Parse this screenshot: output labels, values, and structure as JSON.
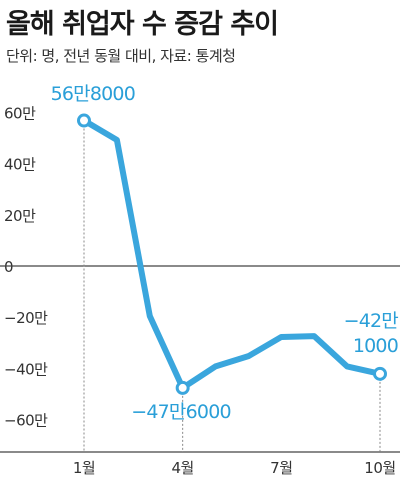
{
  "title": "올해 취업자 수 증감 추이",
  "subtitle": "단위: 명, 전년 동월 대비, 자료: 통계청",
  "colors": {
    "line": "#3aa6dd",
    "label": "#2a9fd8",
    "axis": "#444444",
    "guide": "#888888"
  },
  "chart_data": {
    "type": "line",
    "title": "올해 취업자 수 증감 추이",
    "subtitle": "단위: 명, 전년 동월 대비, 자료: 통계청",
    "x": [
      1,
      2,
      3,
      4,
      5,
      6,
      7,
      8,
      9,
      10
    ],
    "x_tick_values": [
      1,
      4,
      7,
      10
    ],
    "x_tick_labels": [
      "1월",
      "4월",
      "7월",
      "10월"
    ],
    "y_tick_values": [
      60,
      40,
      20,
      0,
      -20,
      -40,
      -60
    ],
    "y_tick_labels": [
      "60만",
      "40만",
      "20만",
      "0",
      "-20만",
      "-40만",
      "-60만"
    ],
    "ylim": [
      -70,
      65
    ],
    "ylabel": "",
    "xlabel": "",
    "series": [
      {
        "values": [
          568000,
          492000,
          -195000,
          -476000,
          -392000,
          -352000,
          -277000,
          -274000,
          -392000,
          -421000
        ]
      }
    ],
    "annotations": [
      {
        "x": 1,
        "lines": [
          "56만8000"
        ]
      },
      {
        "x": 4,
        "lines": [
          "−47만6000"
        ]
      },
      {
        "x": 10,
        "lines": [
          "−42만",
          "1000"
        ]
      }
    ],
    "zero_line": true,
    "grid": false
  }
}
